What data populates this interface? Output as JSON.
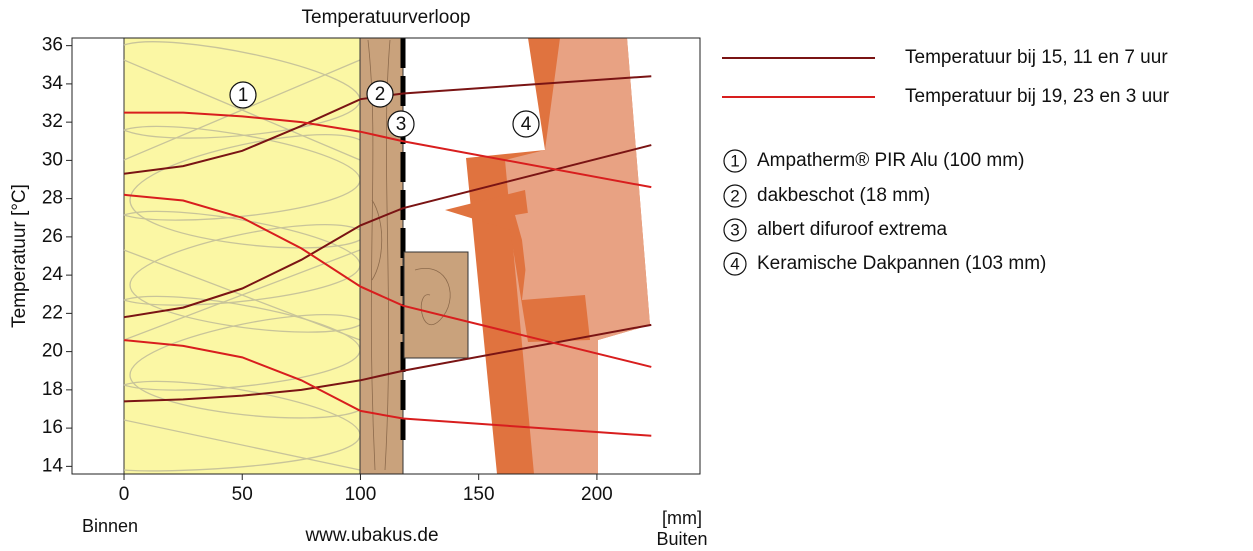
{
  "chart_data": {
    "type": "line",
    "title": "Temperatuurverloop",
    "ylabel": "Temperatuur [°C]",
    "x": [
      0,
      25,
      50,
      75,
      100,
      118,
      223
    ],
    "xlim": [
      -22,
      243.6
    ],
    "xticks": [
      0,
      50,
      100,
      150,
      200
    ],
    "ylim": [
      13.6,
      36.4
    ],
    "yticks": [
      14,
      16,
      18,
      20,
      22,
      24,
      26,
      28,
      30,
      32,
      34,
      36
    ],
    "series": [
      {
        "name": "Temperatuur bij 15, 11 en 7 uur",
        "color": "#7a1414",
        "values": [
          [
            29.3,
            29.7,
            30.5,
            31.8,
            33.2,
            33.5,
            34.4
          ],
          [
            21.8,
            22.3,
            23.3,
            24.8,
            26.6,
            27.5,
            30.8
          ],
          [
            17.4,
            17.5,
            17.7,
            18.0,
            18.5,
            19.0,
            21.4
          ]
        ]
      },
      {
        "name": "Temperatuur bij 19, 23 en 3 uur",
        "color": "#d81e1e",
        "values": [
          [
            32.5,
            32.5,
            32.3,
            32.0,
            31.5,
            31.0,
            28.6
          ],
          [
            28.2,
            27.9,
            27.0,
            25.4,
            23.4,
            22.4,
            19.2
          ],
          [
            20.6,
            20.3,
            19.7,
            18.5,
            16.9,
            16.5,
            15.6
          ]
        ]
      }
    ],
    "layers": [
      {
        "number": "1",
        "label": "Ampatherm® PIR Alu (100 mm)"
      },
      {
        "number": "2",
        "label": "dakbeschot (18 mm)"
      },
      {
        "number": "3",
        "label": "albert difuroof extrema"
      },
      {
        "number": "4",
        "label": "Keramische Dakpannen (103 mm)"
      }
    ],
    "annotations": {
      "inside": "Binnen",
      "source": "www.ubakus.de",
      "unit": "[mm]",
      "outside": "Buiten"
    }
  }
}
